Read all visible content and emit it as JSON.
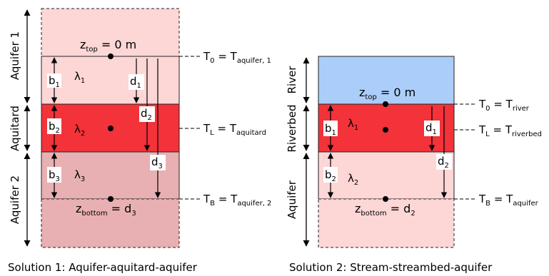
{
  "solution1": {
    "caption": "Solution 1: Aquifer-aquitard-aquifer",
    "side_labels": {
      "top": "Aquifer 1",
      "middle": "Aquitard",
      "bottom": "Aquifer 2"
    },
    "layers": [
      {
        "b": "b",
        "b_sub": "1",
        "lambda": "λ",
        "lambda_sub": "1",
        "color": "#fdd6d6"
      },
      {
        "b": "b",
        "b_sub": "2",
        "lambda": "λ",
        "lambda_sub": "2",
        "color": "#f3323a"
      },
      {
        "b": "b",
        "b_sub": "3",
        "lambda": "λ",
        "lambda_sub": "3",
        "color": "#e8b0b2"
      }
    ],
    "depths": [
      {
        "d": "d",
        "sub": "1"
      },
      {
        "d": "d",
        "sub": "2"
      },
      {
        "d": "d",
        "sub": "3"
      }
    ],
    "z_top": {
      "z": "z",
      "sub": "top",
      "eq": " = 0 m"
    },
    "z_bottom": {
      "z": "z",
      "sub": "bottom",
      "eq": " = d",
      "eq_sub": "3"
    },
    "boundaries": [
      {
        "T": "T",
        "T_sub": "0",
        "eq": " = T",
        "R_sub": "aquifer, 1"
      },
      {
        "T": "T",
        "T_sub": "L",
        "eq": " = T",
        "R_sub": "aquitard"
      },
      {
        "T": "T",
        "T_sub": "B",
        "eq": " = T",
        "R_sub": "aquifer, 2"
      }
    ]
  },
  "solution2": {
    "caption": "Solution 2: Stream-streambed-aquifer",
    "side_labels": {
      "top": "River",
      "middle": "Riverbed",
      "bottom": "Aquifer"
    },
    "layers": [
      {
        "b": "b",
        "b_sub": "1",
        "lambda": "λ",
        "lambda_sub": "1",
        "color": "#f3323a"
      },
      {
        "b": "b",
        "b_sub": "2",
        "lambda": "λ",
        "lambda_sub": "2",
        "color": "#fdd6d6"
      }
    ],
    "river_color": "#abcdf9",
    "depths": [
      {
        "d": "d",
        "sub": "1"
      },
      {
        "d": "d",
        "sub": "2"
      }
    ],
    "z_top": {
      "z": "z",
      "sub": "top",
      "eq": " = 0 m"
    },
    "z_bottom": {
      "z": "z",
      "sub": "bottom",
      "eq": " = d",
      "eq_sub": "2"
    },
    "boundaries": [
      {
        "T": "T",
        "T_sub": "0",
        "eq": " = T",
        "R_sub": "river"
      },
      {
        "T": "T",
        "T_sub": "L",
        "eq": " = T",
        "R_sub": "riverbed"
      },
      {
        "T": "T",
        "T_sub": "B",
        "eq": " = T",
        "R_sub": "aquifer"
      }
    ]
  }
}
